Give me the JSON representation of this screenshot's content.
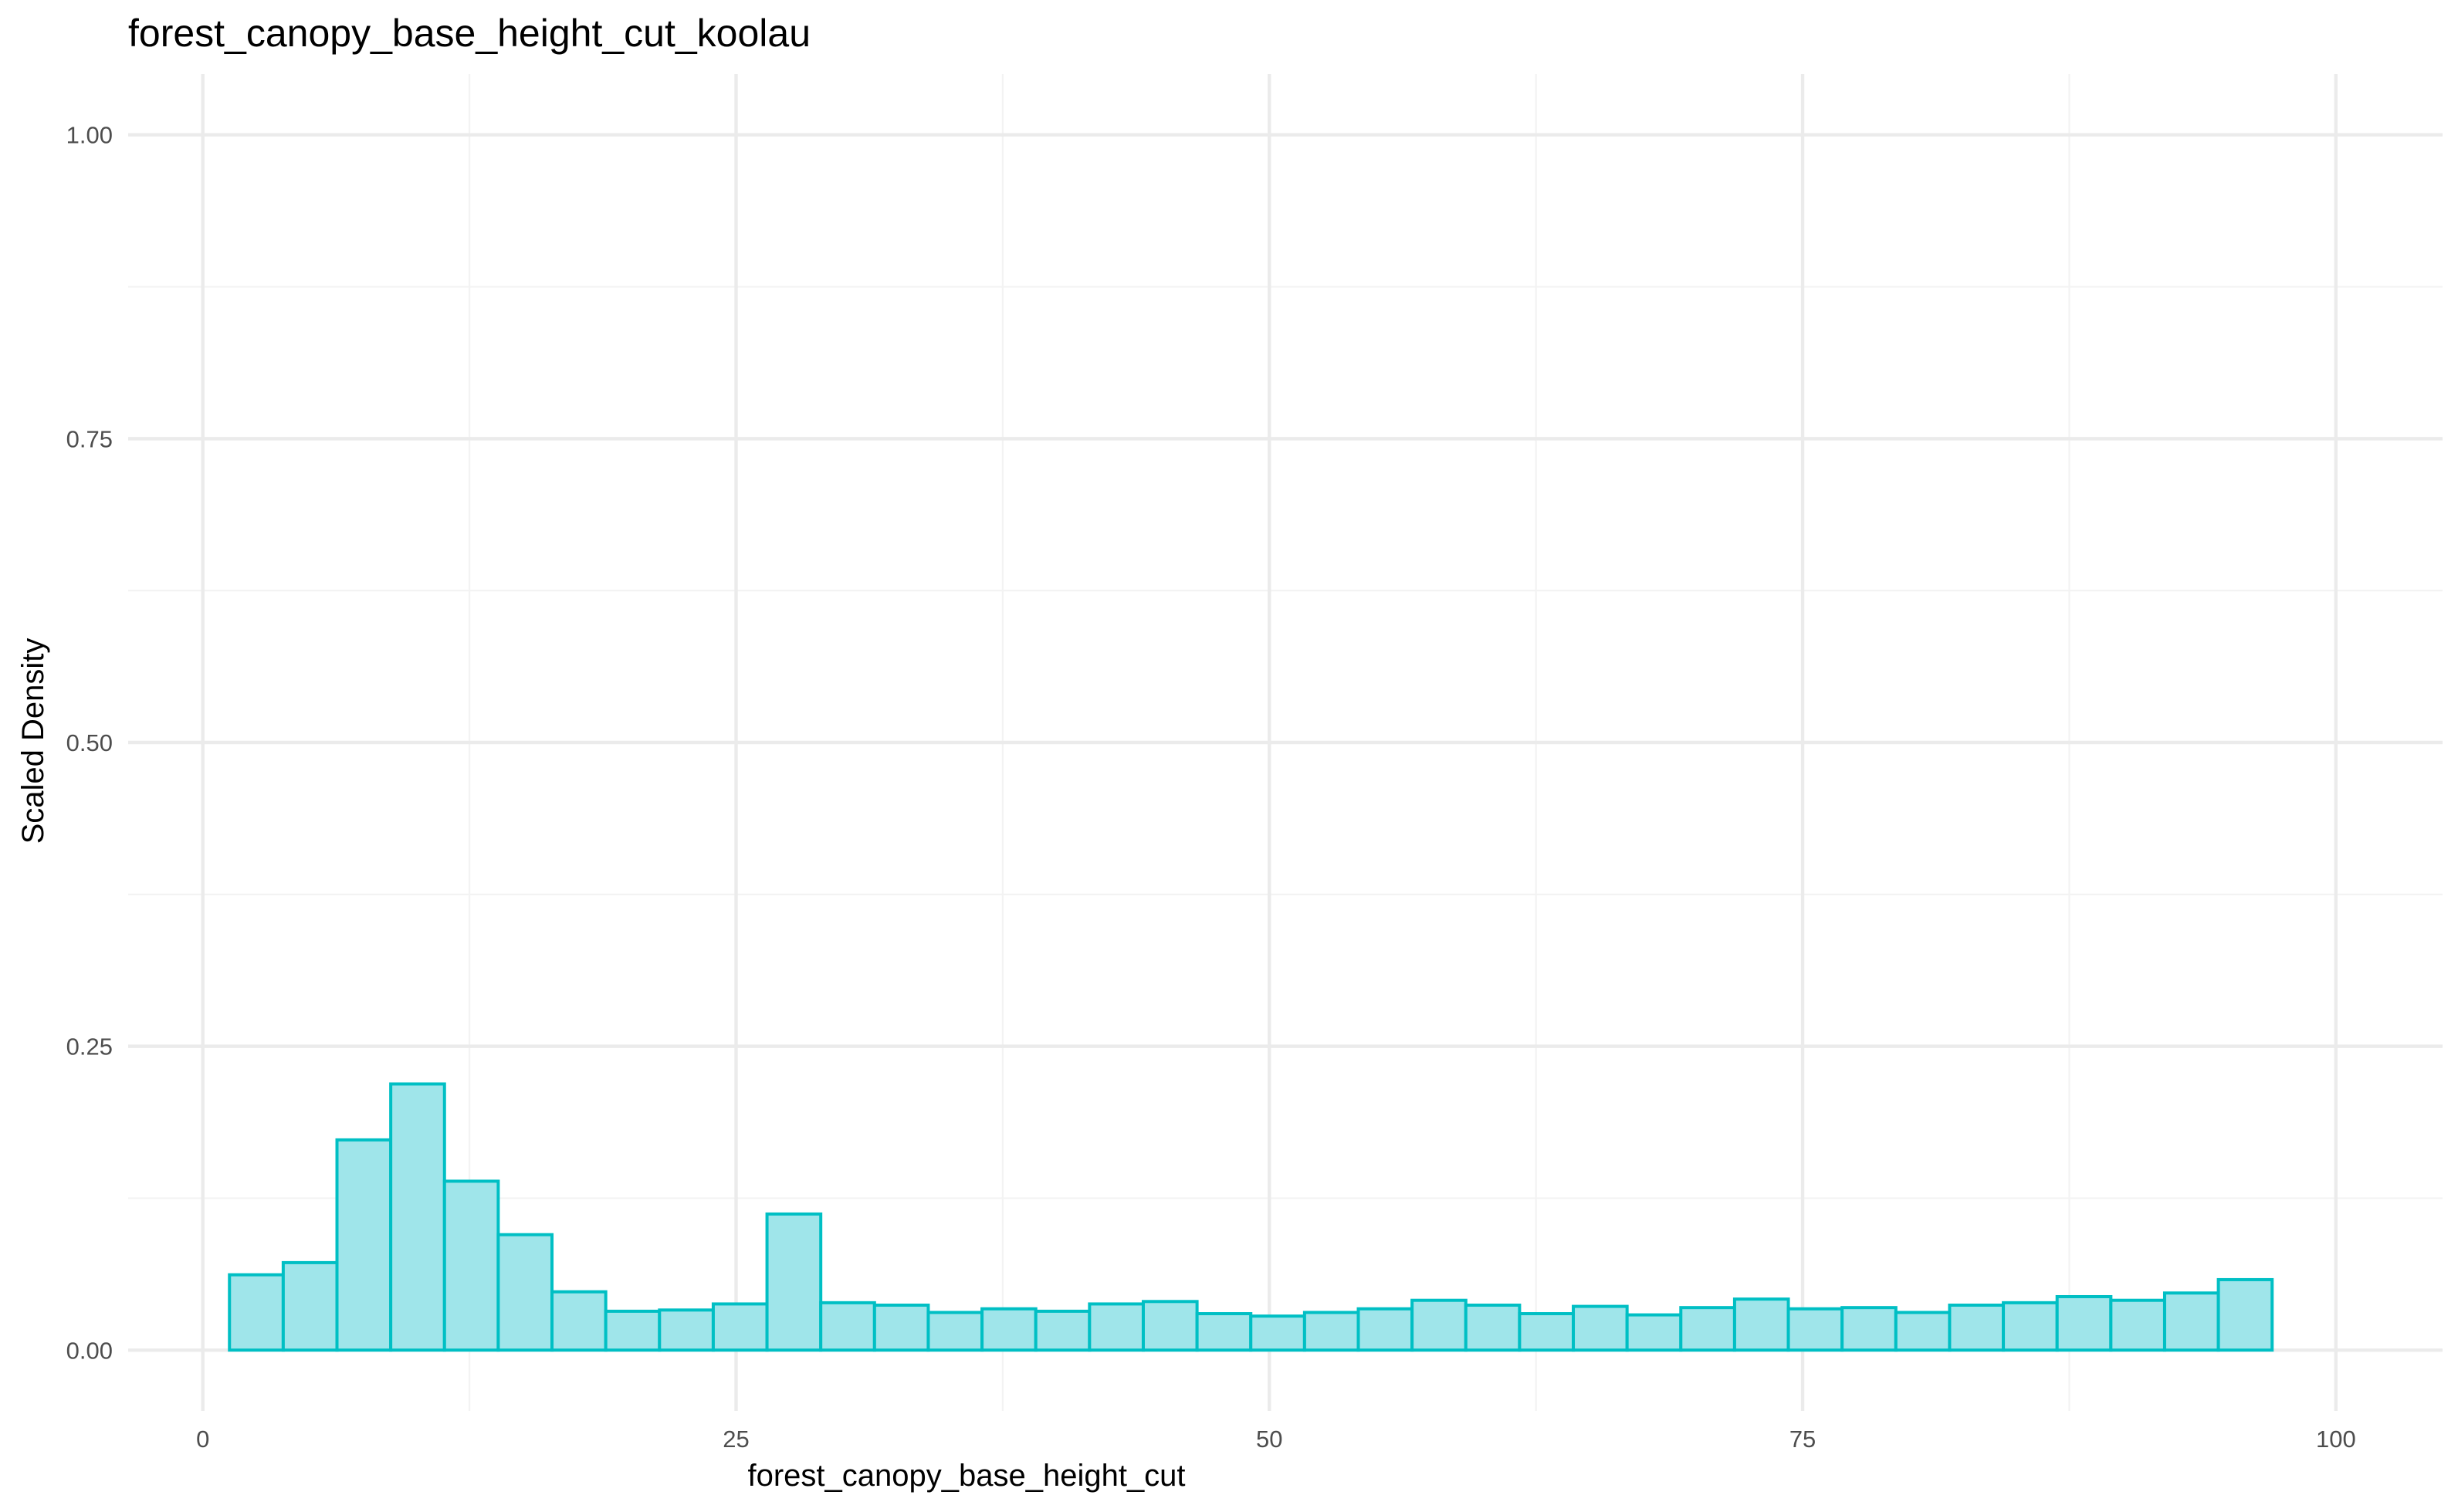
{
  "chart_data": {
    "type": "bar",
    "title": "forest_canopy_base_height_cut_koolau",
    "xlabel": "forest_canopy_base_height_cut",
    "ylabel": "Scaled Density",
    "xlim": [
      -3.5,
      105
    ],
    "ylim": [
      -0.05,
      1.05
    ],
    "x_ticks": [
      0,
      25,
      50,
      75,
      100
    ],
    "x_tick_labels": [
      "0",
      "25",
      "50",
      "75",
      "100"
    ],
    "y_ticks": [
      0,
      0.25,
      0.5,
      0.75,
      1.0
    ],
    "y_tick_labels": [
      "0.00",
      "0.25",
      "0.50",
      "0.75",
      "1.00"
    ],
    "grid": true,
    "legend": "none",
    "bin_width": 2.52,
    "bin_edges_start": 1.25,
    "values": [
      0.062,
      0.072,
      0.173,
      0.219,
      0.139,
      0.095,
      0.048,
      0.032,
      0.033,
      0.038,
      0.112,
      0.039,
      0.037,
      0.031,
      0.034,
      0.032,
      0.038,
      0.04,
      0.03,
      0.028,
      0.031,
      0.034,
      0.041,
      0.037,
      0.03,
      0.036,
      0.029,
      0.035,
      0.042,
      0.034,
      0.035,
      0.031,
      0.037,
      0.039,
      0.044,
      0.041,
      0.047,
      0.058
    ],
    "colors": {
      "bar_fill": "#9fe5ea",
      "bar_stroke": "#00bfc4",
      "grid_major": "#ebebeb",
      "grid_minor": "#f3f3f3"
    }
  }
}
